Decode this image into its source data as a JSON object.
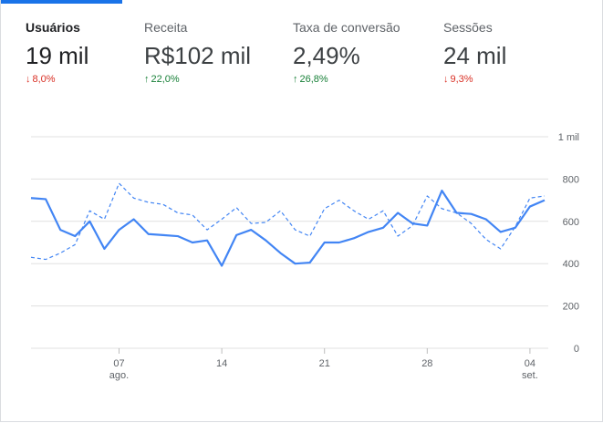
{
  "metrics": [
    {
      "label": "Usuários",
      "value": "19 mil",
      "delta": "8,0%",
      "direction": "down",
      "icon": "arrow-down-icon"
    },
    {
      "label": "Receita",
      "value": "R$102 mil",
      "delta": "22,0%",
      "direction": "up",
      "icon": "arrow-up-icon"
    },
    {
      "label": "Taxa de conversão",
      "value": "2,49%",
      "delta": "26,8%",
      "direction": "up",
      "icon": "arrow-up-icon"
    },
    {
      "label": "Sessões",
      "value": "24 mil",
      "delta": "9,3%",
      "direction": "down",
      "icon": "arrow-down-icon"
    }
  ],
  "colors": {
    "accent": "#1a73e8",
    "line": "#4285f4",
    "up": "#188038",
    "down": "#d93025"
  },
  "chart_data": {
    "type": "line",
    "x": [
      1,
      2,
      3,
      4,
      5,
      6,
      7,
      8,
      9,
      10,
      11,
      12,
      13,
      14,
      15,
      16,
      17,
      18,
      19,
      20,
      21,
      22,
      23,
      24,
      25,
      26,
      27,
      28,
      29,
      30,
      31,
      32,
      33,
      34,
      35,
      36
    ],
    "x_ticks": [
      {
        "day": 7,
        "label": "07",
        "sublabel": "ago."
      },
      {
        "day": 14,
        "label": "14",
        "sublabel": ""
      },
      {
        "day": 21,
        "label": "21",
        "sublabel": ""
      },
      {
        "day": 28,
        "label": "28",
        "sublabel": ""
      },
      {
        "day": 35,
        "label": "04",
        "sublabel": "set."
      }
    ],
    "y_ticks": [
      {
        "value": 0,
        "label": "0"
      },
      {
        "value": 200,
        "label": "200"
      },
      {
        "value": 400,
        "label": "400"
      },
      {
        "value": 600,
        "label": "600"
      },
      {
        "value": 800,
        "label": "800"
      },
      {
        "value": 1000,
        "label": "1 mil"
      }
    ],
    "ylim": [
      0,
      1000
    ],
    "grid": true,
    "series": [
      {
        "style": "solid",
        "values": [
          710,
          705,
          560,
          530,
          600,
          470,
          560,
          610,
          540,
          535,
          530,
          500,
          510,
          390,
          535,
          560,
          510,
          450,
          400,
          405,
          500,
          500,
          520,
          550,
          570,
          640,
          590,
          580,
          745,
          640,
          635,
          610,
          550,
          570,
          670,
          700
        ]
      },
      {
        "style": "dashed",
        "values": [
          430,
          420,
          450,
          490,
          650,
          610,
          780,
          710,
          690,
          680,
          640,
          630,
          560,
          610,
          665,
          590,
          595,
          650,
          560,
          530,
          660,
          700,
          650,
          610,
          650,
          530,
          580,
          720,
          660,
          640,
          590,
          515,
          470,
          575,
          710,
          720
        ]
      }
    ]
  }
}
